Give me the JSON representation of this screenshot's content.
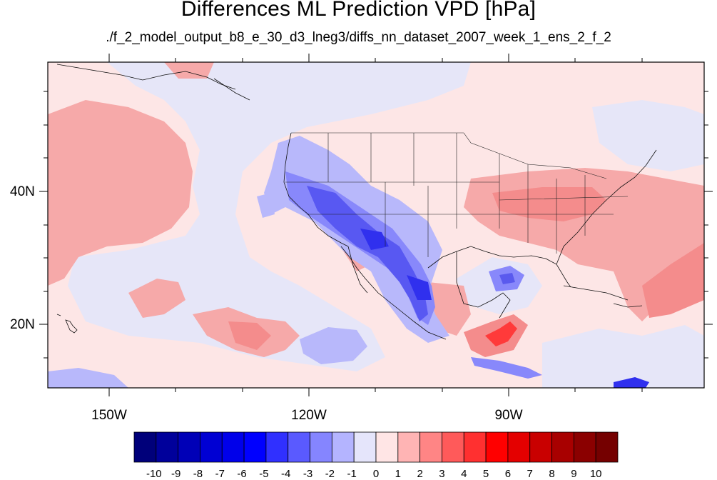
{
  "title": "Differences ML Prediction VPD [hPa]",
  "subtitle": "./f_2_model_output_b8_e_30_d3_lneg3/diffs_nn_dataset_2007_week_1_ens_2_f_2",
  "axes": {
    "lat_labels": [
      "40N",
      "20N"
    ],
    "lon_labels": [
      "150W",
      "120W",
      "90W"
    ]
  },
  "colorbar": {
    "labels": [
      "-10",
      "-9",
      "-8",
      "-7",
      "-6",
      "-5",
      "-4",
      "-3",
      "-2",
      "-1",
      "0",
      "1",
      "2",
      "3",
      "4",
      "5",
      "6",
      "7",
      "8",
      "9",
      "10"
    ],
    "colors": [
      "#00007a",
      "#00009b",
      "#0000b7",
      "#0000d3",
      "#0000ea",
      "#0000ff",
      "#3030ff",
      "#5a5aff",
      "#8585ff",
      "#b4b4ff",
      "#e5e5fb",
      "#ffe5e5",
      "#ffb4b4",
      "#ff8585",
      "#ff5a5a",
      "#ff3030",
      "#ff0000",
      "#e40000",
      "#c90000",
      "#a80000",
      "#8b0000",
      "#750000"
    ]
  },
  "colors": {
    "background": "#ffe8e8",
    "cool": "#e8e8fb",
    "warm": "#f7a8a8",
    "dry": "#4444ee"
  }
}
